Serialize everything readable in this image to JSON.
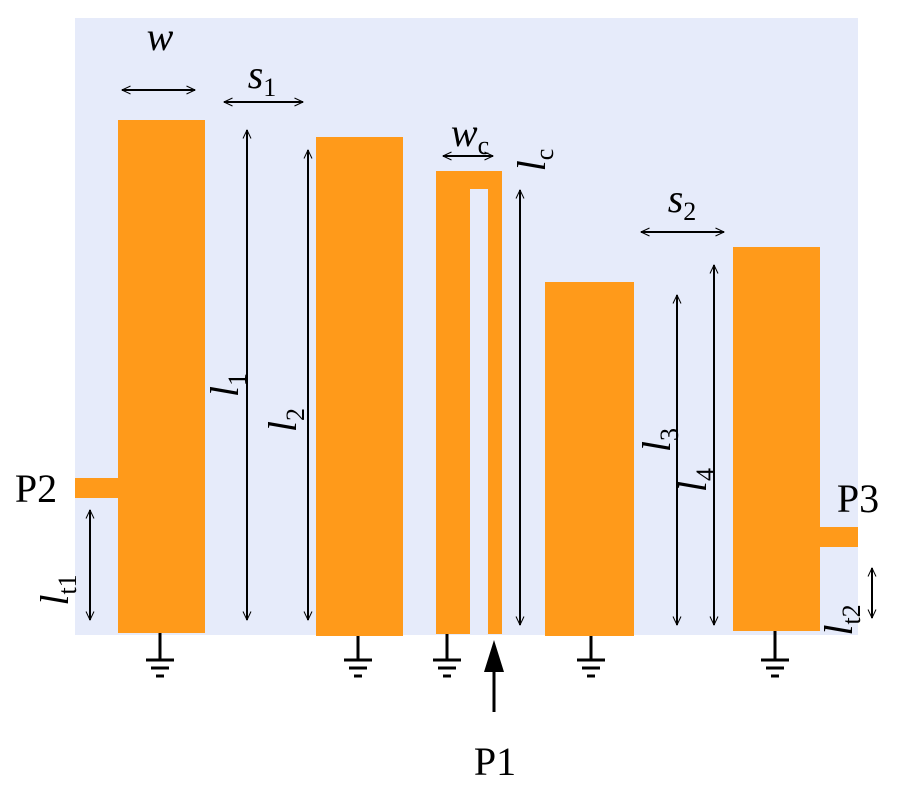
{
  "ports": [
    {
      "label": "P1"
    },
    {
      "label": "P2"
    },
    {
      "label": "P3"
    }
  ],
  "dimensions": {
    "w": {
      "base": "w"
    },
    "s1": {
      "base": "s",
      "sub": "1"
    },
    "wc": {
      "base": "w",
      "sub": "c"
    },
    "lc": {
      "base": "l",
      "sub": "c"
    },
    "s2": {
      "base": "s",
      "sub": "2"
    },
    "l1": {
      "base": "l",
      "sub": "1"
    },
    "l2": {
      "base": "l",
      "sub": "2"
    },
    "l3": {
      "base": "l",
      "sub": "3"
    },
    "l4": {
      "base": "l",
      "sub": "4"
    },
    "lt1": {
      "base": "l",
      "sub": "t1"
    },
    "lt2": {
      "base": "l",
      "sub": "t2"
    }
  }
}
